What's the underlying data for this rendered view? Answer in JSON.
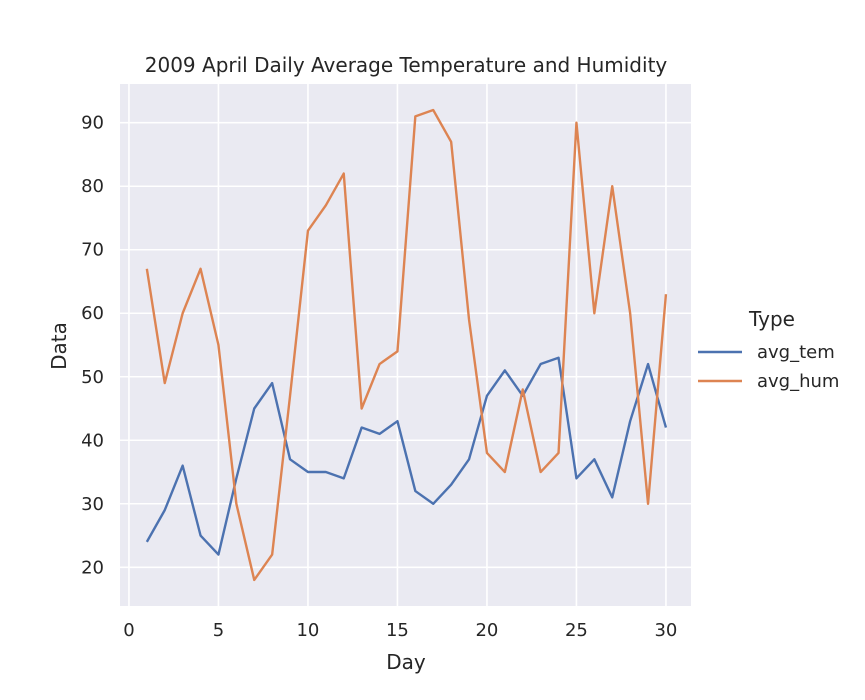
{
  "chart_data": {
    "type": "line",
    "title": "2009 April Daily Average Temperature and Humidity",
    "xlabel": "Day",
    "ylabel": "Data",
    "xlim": [
      -0.5,
      31.4
    ],
    "ylim": [
      13.9,
      96.1
    ],
    "xticks": [
      0,
      5,
      10,
      15,
      20,
      25,
      30
    ],
    "yticks": [
      20,
      30,
      40,
      50,
      60,
      70,
      80,
      90
    ],
    "grid": true,
    "legend": {
      "title": "Type",
      "placement": "right"
    },
    "x": [
      1,
      2,
      3,
      4,
      5,
      6,
      7,
      8,
      9,
      10,
      11,
      12,
      13,
      14,
      15,
      16,
      17,
      18,
      19,
      20,
      21,
      22,
      23,
      24,
      25,
      26,
      27,
      28,
      29,
      30
    ],
    "series": [
      {
        "name": "avg_tem",
        "color": "#4c72b0",
        "values": [
          24,
          29,
          36,
          25,
          22,
          34,
          45,
          49,
          37,
          35,
          35,
          34,
          42,
          41,
          43,
          32,
          30,
          33,
          37,
          47,
          51,
          47,
          52,
          53,
          34,
          37,
          31,
          43,
          52,
          42
        ]
      },
      {
        "name": "avg_hum",
        "color": "#dd8452",
        "values": [
          67,
          49,
          60,
          67,
          55,
          30,
          18,
          22,
          47,
          73,
          77,
          82,
          45,
          52,
          54,
          91,
          92,
          87,
          59,
          38,
          35,
          48,
          35,
          38,
          90,
          60,
          80,
          60,
          30,
          63
        ]
      }
    ]
  }
}
